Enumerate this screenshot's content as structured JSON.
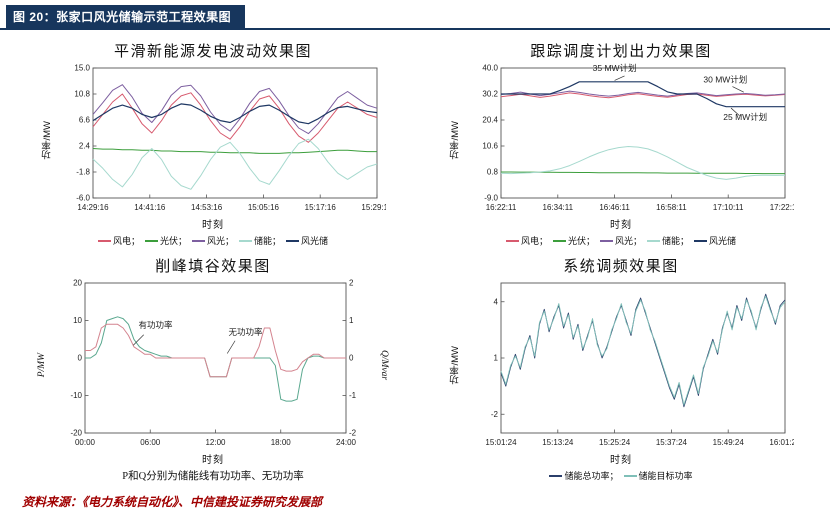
{
  "header": {
    "figure_label": "图 20：张家口风光储输示范工程效果图"
  },
  "footer": {
    "source": "资料来源：《电力系统自动化》、中信建投证券研究发展部"
  },
  "colors": {
    "header_bg": "#17365d",
    "source_text": "#a00000"
  },
  "chart_data": [
    {
      "type": "line",
      "title": "平滑新能源发电波动效果图",
      "ylabel": "功率/MW",
      "xlabel": "时刻",
      "ylim": [
        15.0,
        -6.0
      ],
      "y_ticks": {
        "values": [
          15.0,
          10.8,
          6.6,
          2.4,
          -1.8,
          -6.0
        ],
        "labels": [
          "15.0",
          "10.8",
          "6.6",
          "2.4",
          "-1.8",
          "-6.0"
        ]
      },
      "x_ticks": [
        "14:29:16",
        "14:41:16",
        "14:53:16",
        "15:05:16",
        "15:17:16",
        "15:29:16"
      ],
      "series": [
        {
          "name": "风电",
          "color": "#d75a6e",
          "values": [
            5.5,
            7.5,
            9.5,
            10.8,
            8.5,
            6.0,
            4.5,
            6.5,
            9.0,
            10.5,
            11.0,
            9.0,
            6.5,
            4.5,
            3.5,
            5.5,
            8.0,
            10.0,
            10.5,
            8.5,
            6.0,
            4.0,
            3.0,
            4.5,
            6.5,
            8.5,
            9.5,
            8.5,
            7.5,
            7.0
          ]
        },
        {
          "name": "光伏",
          "color": "#3c9e3c",
          "values": [
            2.0,
            1.9,
            1.9,
            1.8,
            1.8,
            1.7,
            1.7,
            1.6,
            1.6,
            1.5,
            1.5,
            1.5,
            1.4,
            1.4,
            1.3,
            1.3,
            1.3,
            1.2,
            1.2,
            1.2,
            1.3,
            1.3,
            1.4,
            1.5,
            1.6,
            1.7,
            1.7,
            1.6,
            1.5,
            1.5
          ]
        },
        {
          "name": "风光",
          "color": "#7d5fa0",
          "values": [
            7.5,
            9.4,
            11.4,
            12.3,
            10.3,
            7.7,
            6.2,
            8.1,
            10.6,
            12.0,
            12.2,
            10.5,
            7.9,
            5.9,
            4.8,
            6.8,
            9.3,
            11.2,
            11.7,
            9.7,
            7.3,
            5.3,
            4.4,
            6.0,
            8.1,
            10.2,
            11.2,
            10.1,
            9.0,
            8.5
          ]
        },
        {
          "name": "储能",
          "color": "#a6d9ce",
          "values": [
            0.3,
            -1.2,
            -3.0,
            -4.2,
            -2.2,
            0.5,
            2.0,
            0.2,
            -2.5,
            -4.0,
            -4.6,
            -2.4,
            0.2,
            2.2,
            3.0,
            1.2,
            -1.2,
            -3.2,
            -3.8,
            -1.6,
            0.8,
            2.8,
            3.5,
            2.0,
            -0.2,
            -2.0,
            -3.0,
            -2.0,
            -1.0,
            -0.5
          ]
        },
        {
          "name": "风光储",
          "color": "#1f3864",
          "width": 1.2,
          "values": [
            6.5,
            7.5,
            8.5,
            9.0,
            8.5,
            7.5,
            7.0,
            7.5,
            8.5,
            9.2,
            9.0,
            8.2,
            7.2,
            6.5,
            6.2,
            7.0,
            8.0,
            8.8,
            9.0,
            8.2,
            7.2,
            6.3,
            6.0,
            6.8,
            7.8,
            8.6,
            8.8,
            8.4,
            8.0,
            7.8
          ]
        }
      ],
      "annotations": []
    },
    {
      "type": "line",
      "title": "跟踪调度计划出力效果图",
      "ylabel": "功率/MW",
      "xlabel": "时刻",
      "ylim": [
        40.0,
        -9.0
      ],
      "y_ticks": {
        "values": [
          40.0,
          30.2,
          20.4,
          10.6,
          0.8,
          -9.0
        ],
        "labels": [
          "40.0",
          "30.2",
          "20.4",
          "10.6",
          "0.8",
          "-9.0"
        ]
      },
      "x_ticks": [
        "16:22:11",
        "16:34:11",
        "16:46:11",
        "16:58:11",
        "17:10:11",
        "17:22:11"
      ],
      "series": [
        {
          "name": "风电",
          "color": "#d75a6e",
          "values": [
            29.2,
            29.6,
            30.1,
            29.5,
            28.9,
            29.4,
            30.0,
            30.6,
            30.2,
            29.6,
            29.1,
            28.8,
            29.3,
            29.9,
            30.3,
            29.8,
            29.3,
            29.0,
            29.5,
            30.0,
            30.2,
            29.7,
            29.3,
            29.6,
            29.9,
            30.1,
            29.8,
            29.5,
            29.7,
            30.0
          ]
        },
        {
          "name": "光伏",
          "color": "#3c9e3c",
          "values": [
            0.8,
            0.8,
            0.75,
            0.75,
            0.7,
            0.7,
            0.65,
            0.65,
            0.6,
            0.6,
            0.55,
            0.55,
            0.5,
            0.5,
            0.5,
            0.45,
            0.45,
            0.4,
            0.4,
            0.4,
            0.35,
            0.35,
            0.3,
            0.3,
            0.3,
            0.25,
            0.25,
            0.2,
            0.2,
            0.2
          ]
        },
        {
          "name": "风光",
          "color": "#7d5fa0",
          "values": [
            30.0,
            30.4,
            30.9,
            30.2,
            29.6,
            30.1,
            30.7,
            31.3,
            30.8,
            30.2,
            29.7,
            29.4,
            29.8,
            30.4,
            30.8,
            30.3,
            29.8,
            29.4,
            29.9,
            30.4,
            30.6,
            30.1,
            29.6,
            29.9,
            30.2,
            30.4,
            30.1,
            29.7,
            29.9,
            30.2
          ]
        },
        {
          "name": "储能",
          "color": "#a6d9ce",
          "values": [
            0.3,
            0.2,
            0.4,
            0.5,
            0.8,
            1.2,
            2.0,
            3.2,
            4.8,
            6.5,
            8.0,
            9.2,
            10.0,
            10.4,
            10.2,
            9.5,
            8.2,
            6.5,
            4.5,
            2.5,
            1.0,
            -0.5,
            -1.5,
            -2.0,
            -1.5,
            -0.8,
            -0.5,
            -0.4,
            -0.5,
            -0.4
          ]
        },
        {
          "name": "风光储",
          "color": "#1f3864",
          "width": 1.2,
          "values": [
            30.2,
            30.2,
            30.2,
            30.2,
            30.2,
            30.2,
            31.5,
            33.0,
            34.8,
            34.8,
            34.8,
            34.8,
            34.8,
            34.8,
            34.8,
            34.8,
            33.0,
            31.0,
            30.2,
            30.2,
            30.2,
            28.5,
            26.5,
            25.4,
            25.4,
            25.4,
            25.4,
            25.4,
            25.4,
            25.4
          ]
        }
      ],
      "annotations": [
        {
          "text": "35 MW计划",
          "x": 0.4,
          "y": 38.8,
          "line": [
            0.435,
            37.0,
            0.4,
            35.3
          ]
        },
        {
          "text": "30 MW计划",
          "x": 0.79,
          "y": 34.6,
          "line": [
            0.815,
            33.0,
            0.855,
            30.9
          ]
        },
        {
          "text": "25 MW计划",
          "x": 0.86,
          "y": 20.4,
          "line": [
            0.84,
            22.0,
            0.81,
            24.9
          ]
        }
      ]
    },
    {
      "type": "line",
      "title": "削峰填谷效果图",
      "ylabel": "P/MW",
      "ylabel_right": "Q/Mvar",
      "xlabel": "时刻",
      "caption": "P和Q分别为储能线有功功率、无功功率",
      "ylim": [
        20,
        -20
      ],
      "ylim_right": [
        2,
        -2
      ],
      "y_ticks": {
        "values": [
          20,
          10,
          0,
          -10,
          -20
        ],
        "labels": [
          "20",
          "10",
          "0",
          "-10",
          "-20"
        ]
      },
      "y_ticks_right": {
        "values": [
          2,
          1,
          0,
          -1,
          -2
        ],
        "labels": [
          "2",
          "1",
          "0",
          "-1",
          "-2"
        ]
      },
      "x_ticks": [
        "00:00",
        "06:00",
        "12:00",
        "18:00",
        "24:00"
      ],
      "series": [
        {
          "name": "有功功率",
          "color": "#5aa88f",
          "values": [
            0,
            0,
            1,
            4,
            10,
            10.5,
            11,
            10.5,
            9,
            5,
            3,
            2,
            1.5,
            1,
            0.5,
            0.5,
            0,
            0,
            0,
            0,
            0,
            0,
            0,
            -5,
            -5,
            -5,
            -5,
            0,
            0,
            0,
            0,
            0,
            0,
            0,
            0,
            -2,
            -11,
            -11.5,
            -11.5,
            -11,
            -3,
            0,
            0.5,
            0.5,
            0,
            0,
            0,
            0,
            0
          ]
        },
        {
          "name": "无功功率",
          "color": "#d4848f",
          "axis": "right",
          "values": [
            0.2,
            0.2,
            0.3,
            0.8,
            0.9,
            0.9,
            0.9,
            0.8,
            0.6,
            0.3,
            0.2,
            0.1,
            0.1,
            0,
            0,
            0,
            0,
            0,
            0,
            0,
            0,
            0,
            0,
            -0.5,
            -0.5,
            -0.5,
            -0.5,
            0,
            0,
            0,
            0,
            0,
            0.3,
            0.8,
            0.8,
            0.2,
            -0.3,
            -0.35,
            -0.35,
            -0.3,
            -0.1,
            0,
            0.1,
            0.1,
            0,
            0,
            0,
            0,
            0
          ]
        }
      ],
      "annotations": [
        {
          "text": "有功功率",
          "x": 0.27,
          "y": 8.0,
          "line": [
            0.225,
            6.2,
            0.185,
            3.4
          ]
        },
        {
          "text": "无功功率",
          "x": 0.615,
          "y": 6.2,
          "line": [
            0.575,
            4.6,
            0.545,
            1.2
          ]
        }
      ]
    },
    {
      "type": "line",
      "title": "系统调频效果图",
      "ylabel": "功率/MW",
      "xlabel": "时刻",
      "ylim": [
        5,
        -3
      ],
      "y_ticks": {
        "values": [
          4,
          1,
          -2
        ],
        "labels": [
          "4",
          "1",
          "-2"
        ]
      },
      "x_ticks": [
        "15:01:24",
        "15:13:24",
        "15:25:24",
        "15:37:24",
        "15:49:24",
        "16:01:24"
      ],
      "series": [
        {
          "name": "储能总功率",
          "color": "#2b3f6b",
          "width": 0.9,
          "values": [
            0.2,
            -0.5,
            0.5,
            1.2,
            0.4,
            1.5,
            2.2,
            1.0,
            2.8,
            3.6,
            2.4,
            3.2,
            3.8,
            2.6,
            3.4,
            2.0,
            2.8,
            1.4,
            2.2,
            3.0,
            1.8,
            1.0,
            1.6,
            2.4,
            3.2,
            3.8,
            3.0,
            2.2,
            3.6,
            4.2,
            3.4,
            2.6,
            1.8,
            1.0,
            0.2,
            -0.6,
            -1.2,
            -0.4,
            -1.6,
            -0.8,
            0.0,
            -1.0,
            0.4,
            1.2,
            2.0,
            1.2,
            2.6,
            3.4,
            2.6,
            3.8,
            3.0,
            4.2,
            3.4,
            2.6,
            3.6,
            4.4,
            3.6,
            2.8,
            3.8,
            4.1
          ]
        },
        {
          "name": "储能目标功率",
          "color": "#7fbfb8",
          "width": 0.9,
          "values": [
            0.3,
            -0.4,
            0.6,
            1.1,
            0.5,
            1.6,
            2.1,
            1.1,
            2.9,
            3.5,
            2.5,
            3.1,
            3.9,
            2.7,
            3.3,
            2.1,
            2.7,
            1.5,
            2.1,
            3.1,
            1.7,
            1.1,
            1.5,
            2.5,
            3.1,
            3.9,
            2.9,
            2.3,
            3.5,
            4.1,
            3.5,
            2.5,
            1.9,
            1.1,
            0.3,
            -0.5,
            -1.1,
            -0.3,
            -1.5,
            -0.7,
            0.1,
            -0.9,
            0.5,
            1.1,
            1.9,
            1.3,
            2.5,
            3.5,
            2.5,
            3.7,
            3.1,
            4.1,
            3.5,
            2.5,
            3.7,
            4.3,
            3.5,
            2.9,
            3.7,
            4.0
          ]
        }
      ],
      "annotations": []
    }
  ]
}
